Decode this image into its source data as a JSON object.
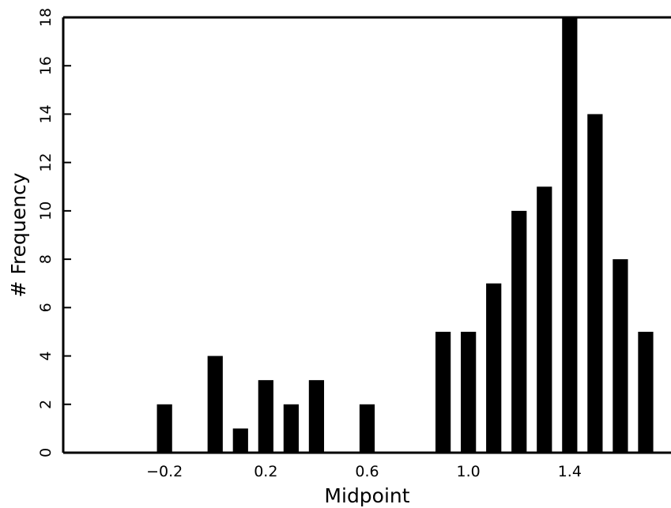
{
  "chart_data": {
    "type": "bar",
    "xlabel": "Midpoint",
    "ylabel": "# Frequency",
    "xlim": [
      -0.6,
      1.8
    ],
    "ylim": [
      0,
      18
    ],
    "x_ticks": [
      -0.2,
      0.2,
      0.6,
      1.0,
      1.4
    ],
    "x_tick_labels": [
      "−0.2",
      "0.2",
      "0.6",
      "1.0",
      "1.4"
    ],
    "y_ticks": [
      0,
      2,
      4,
      6,
      8,
      10,
      12,
      14,
      16,
      18
    ],
    "y_tick_labels": [
      "0",
      "2",
      "4",
      "6",
      "8",
      "10",
      "12",
      "14",
      "16",
      "18"
    ],
    "bar_width": 0.06,
    "x": [
      -0.2,
      0.0,
      0.1,
      0.2,
      0.3,
      0.4,
      0.6,
      0.9,
      1.0,
      1.1,
      1.2,
      1.3,
      1.4,
      1.5,
      1.6,
      1.7
    ],
    "values": [
      2,
      4,
      1,
      3,
      2,
      3,
      2,
      5,
      5,
      7,
      10,
      11,
      18,
      14,
      8,
      5
    ],
    "grid": false,
    "colors": {
      "bar": "#000000",
      "axis": "#000000",
      "background": "#ffffff"
    }
  }
}
